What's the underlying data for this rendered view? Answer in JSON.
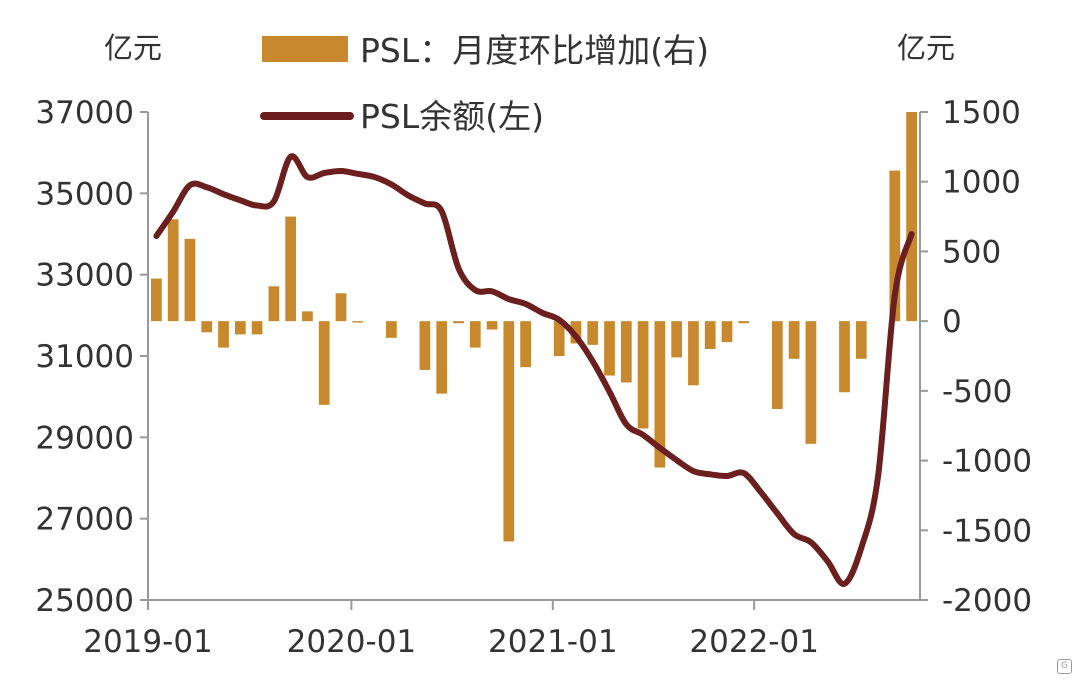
{
  "chart_data": {
    "type": "bar+line",
    "left_unit": "亿元",
    "right_unit": "亿元",
    "legend": {
      "bar_label": "PSL：月度环比增加(右)",
      "line_label": "PSL余额(左)"
    },
    "colors": {
      "bar": "#C8892E",
      "line": "#6B1F1F",
      "axis": "#999999"
    },
    "left_axis": {
      "min": 25000,
      "max": 37000,
      "ticks": [
        "37000",
        "35000",
        "33000",
        "31000",
        "29000",
        "27000",
        "25000"
      ]
    },
    "right_axis": {
      "min": -2000,
      "max": 1500,
      "ticks": [
        "1500",
        "1000",
        "500",
        "0",
        "-500",
        "-1000",
        "-1500",
        "-2000"
      ]
    },
    "x_tick_labels": [
      "2019-01",
      "2020-01",
      "2021-01",
      "2022-01"
    ],
    "x_tick_index": [
      0,
      12,
      24,
      36
    ],
    "months": 46,
    "bars": [
      305,
      730,
      590,
      -80,
      -190,
      -95,
      -95,
      250,
      750,
      70,
      -600,
      200,
      -10,
      0,
      -120,
      0,
      -350,
      -520,
      -15,
      -190,
      -60,
      -1580,
      -330,
      0,
      -250,
      -160,
      -170,
      -390,
      -440,
      -770,
      -1050,
      -260,
      -460,
      -200,
      -150,
      -15,
      0,
      -630,
      -270,
      -880,
      0,
      -510,
      -270,
      0,
      1080,
      1500
    ],
    "balance": [
      33950,
      34550,
      35200,
      35150,
      34980,
      34830,
      34700,
      34800,
      35900,
      35400,
      35500,
      35550,
      35480,
      35400,
      35220,
      34950,
      34750,
      34560,
      33160,
      32620,
      32590,
      32400,
      32280,
      32060,
      31890,
      31480,
      30870,
      30120,
      29320,
      29060,
      28740,
      28440,
      28170,
      28090,
      28050,
      28120,
      27660,
      27130,
      26620,
      26420,
      25950,
      25400,
      26280,
      28040,
      32500,
      34000
    ]
  }
}
